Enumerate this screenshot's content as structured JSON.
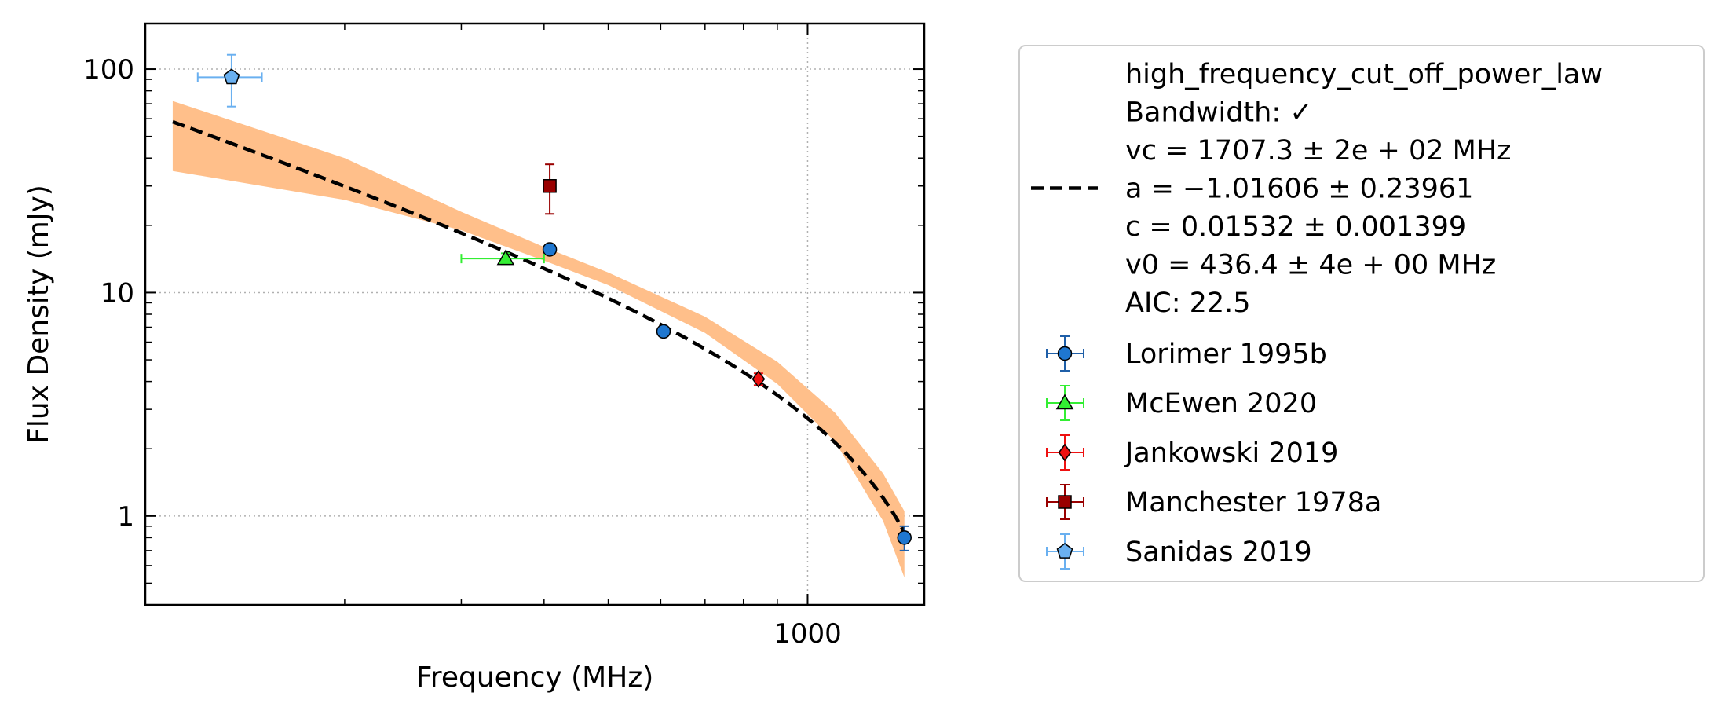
{
  "colors": {
    "band": "#ffbf8a",
    "fit_line": "#000000",
    "grid": "#b0b0b0",
    "legend_border": "#cccccc"
  },
  "chart_data": {
    "type": "scatter",
    "xlabel": "Frequency (MHz)",
    "ylabel": "Flux Density (mJy)",
    "x_scale": "log",
    "y_scale": "log",
    "xlim": [
      100,
      1500
    ],
    "ylim": [
      0.4,
      160
    ],
    "grid": true,
    "legend_placement": "outside-right",
    "x_ticks": [
      {
        "value": 1000,
        "label": "1000"
      }
    ],
    "y_ticks": [
      {
        "value": 1,
        "label": "1"
      },
      {
        "value": 10,
        "label": "10"
      },
      {
        "value": 100,
        "label": "100"
      }
    ],
    "fit": {
      "model": "high_frequency_cut_off_power_law",
      "legend_lines": [
        "high_frequency_cut_off_power_law",
        "Bandwidth: ✓",
        "vc = 1707.3 ± 2e + 02 MHz",
        "a = −1.01606 ± 0.23961",
        "c = 0.01532 ± 0.001399",
        "v0 = 436.4 ± 4e + 00 MHz",
        "AIC: 22.5"
      ],
      "params": {
        "vc": 1707.3,
        "a": -1.01606,
        "c": 0.01532,
        "v0": 436.4
      },
      "x_range": [
        110,
        1400
      ],
      "band_upper": [
        [
          110,
          72
        ],
        [
          200,
          40
        ],
        [
          300,
          23
        ],
        [
          400,
          16
        ],
        [
          500,
          12.3
        ],
        [
          700,
          7.8
        ],
        [
          900,
          4.9
        ],
        [
          1100,
          2.9
        ],
        [
          1300,
          1.55
        ],
        [
          1400,
          1.05
        ]
      ],
      "band_lower": [
        [
          110,
          35
        ],
        [
          200,
          26
        ],
        [
          300,
          19
        ],
        [
          400,
          13.9
        ],
        [
          500,
          10.8
        ],
        [
          700,
          6.6
        ],
        [
          900,
          3.9
        ],
        [
          1100,
          2.15
        ],
        [
          1300,
          0.95
        ],
        [
          1400,
          0.53
        ]
      ],
      "line_color": "#000000",
      "band_color": "#ffbf8a"
    },
    "series": [
      {
        "name": "Lorimer 1995b",
        "marker": "circle",
        "color": "#1f77d0",
        "edge": "#000000",
        "err_color": "#1f5fa8",
        "points": [
          {
            "x": 408,
            "y": 15.6,
            "xerr": 0,
            "yerr": 0
          },
          {
            "x": 606,
            "y": 6.7,
            "xerr": 0,
            "yerr": 0
          },
          {
            "x": 1400,
            "y": 0.8,
            "xerr": 0,
            "yerr": 0.1
          }
        ]
      },
      {
        "name": "McEwen 2020",
        "marker": "triangle",
        "color": "#33ee33",
        "edge": "#000000",
        "err_color": "#33ee33",
        "points": [
          {
            "x": 350,
            "y": 14.2,
            "xerr": 50,
            "yerr": 0.8
          }
        ]
      },
      {
        "name": "Jankowski 2019",
        "marker": "diamond",
        "color": "#ee1111",
        "edge": "#000000",
        "err_color": "#ee1111",
        "points": [
          {
            "x": 843,
            "y": 4.1,
            "xerr": 0,
            "yerr": 0.25
          }
        ]
      },
      {
        "name": "Manchester 1978a",
        "marker": "square",
        "color": "#990000",
        "edge": "#000000",
        "err_color": "#990000",
        "points": [
          {
            "x": 408,
            "y": 30,
            "xerr": 0,
            "yerr": 7.5
          }
        ]
      },
      {
        "name": "Sanidas 2019",
        "marker": "pentagon",
        "color": "#6ab0f0",
        "edge": "#000000",
        "err_color": "#6ab0f0",
        "points": [
          {
            "x": 135,
            "y": 92,
            "xerr": 15,
            "yerr": 24
          }
        ]
      }
    ]
  }
}
